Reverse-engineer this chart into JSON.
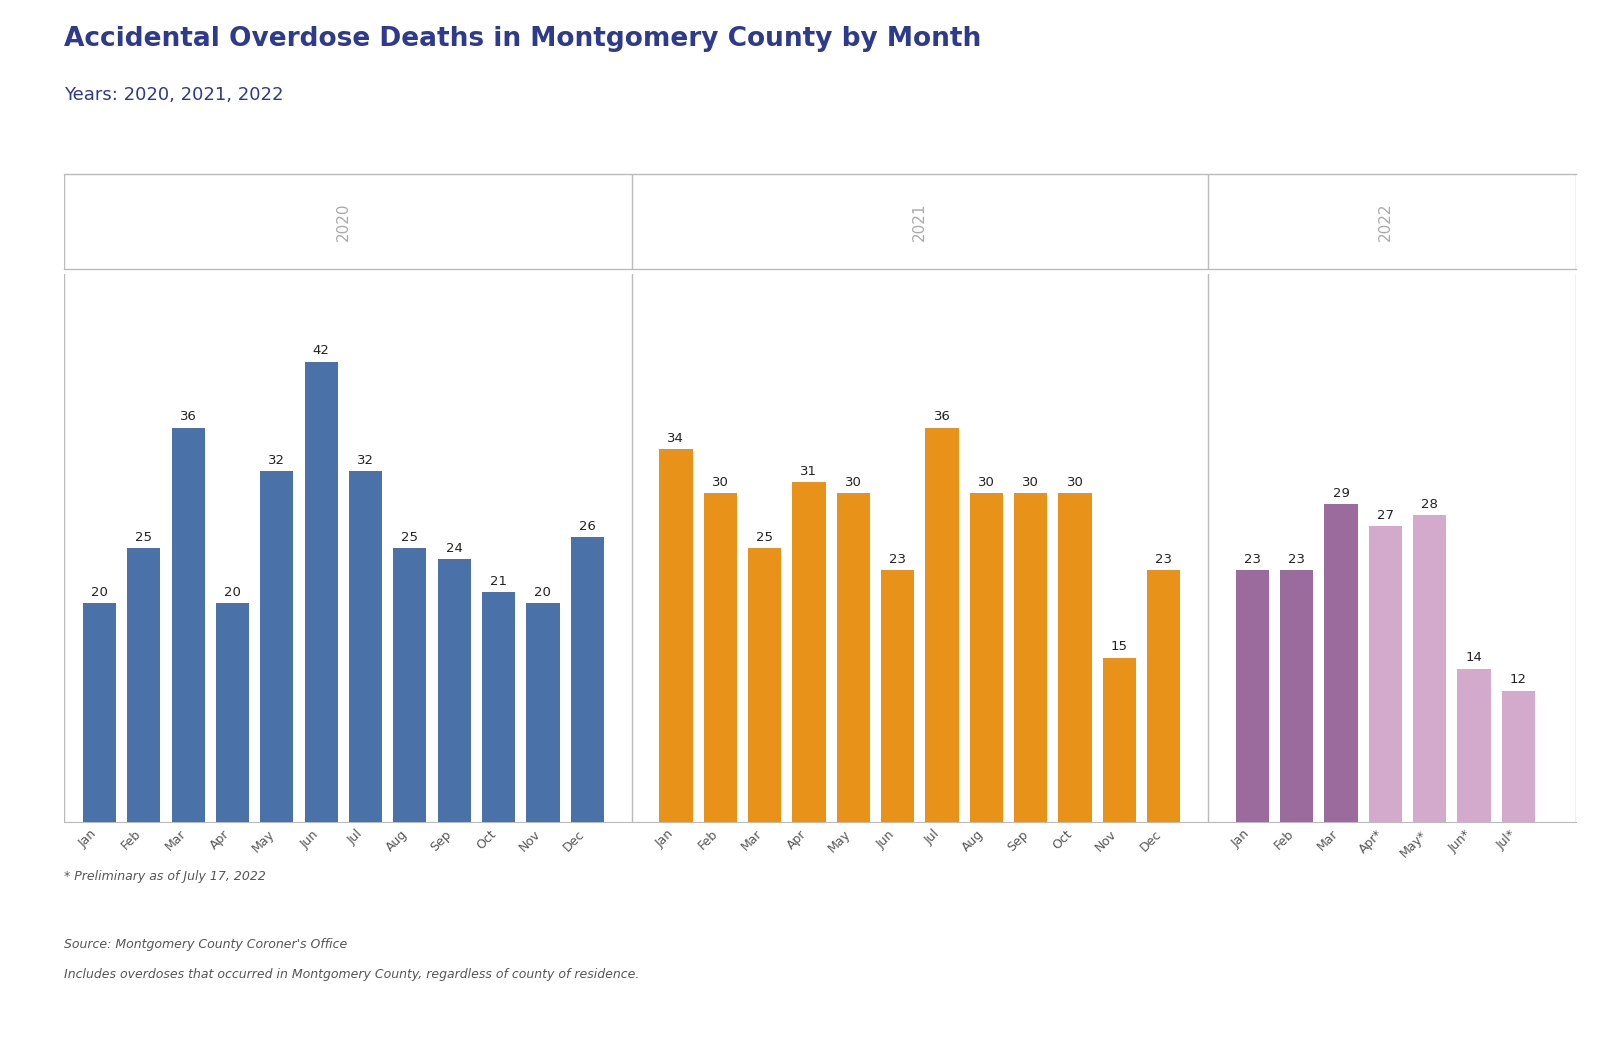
{
  "title": "Accidental Overdose Deaths in Montgomery County by Month",
  "subtitle": "Years: 2020, 2021, 2022",
  "months_2020": [
    "Jan",
    "Feb",
    "Mar",
    "Apr",
    "May",
    "Jun",
    "Jul",
    "Aug",
    "Sep",
    "Oct",
    "Nov",
    "Dec"
  ],
  "values_2020": [
    20,
    25,
    36,
    20,
    32,
    42,
    32,
    25,
    24,
    21,
    20,
    26
  ],
  "color_2020": "#4A72A8",
  "months_2021": [
    "Jan",
    "Feb",
    "Mar",
    "Apr",
    "May",
    "Jun",
    "Jul",
    "Aug",
    "Sep",
    "Oct",
    "Nov",
    "Dec"
  ],
  "values_2021": [
    34,
    30,
    25,
    31,
    30,
    23,
    36,
    30,
    30,
    30,
    15,
    23
  ],
  "color_2021": "#E8921A",
  "months_2022_complete": [
    "Jan",
    "Feb",
    "Mar"
  ],
  "values_2022_complete": [
    23,
    23,
    29
  ],
  "color_2022_complete": "#9B6B9E",
  "months_2022_prelim": [
    "Apr*",
    "May*",
    "Jun*",
    "Jul*"
  ],
  "values_2022_prelim": [
    27,
    28,
    14,
    12
  ],
  "color_2022_prelim": "#D4AACC",
  "footnote": "* Preliminary as of July 17, 2022",
  "source_line1": "Source: Montgomery County Coroner's Office",
  "source_line2": "Includes overdoses that occurred in Montgomery County, regardless of county of residence.",
  "title_color": "#2E3A8C",
  "subtitle_color": "#2E3A8C",
  "year_label_color": "#AAAAAA",
  "ylim": [
    0,
    50
  ],
  "background_color": "#FFFFFF",
  "grid_color": "#E0E0E0",
  "divider_color": "#BBBBBB"
}
